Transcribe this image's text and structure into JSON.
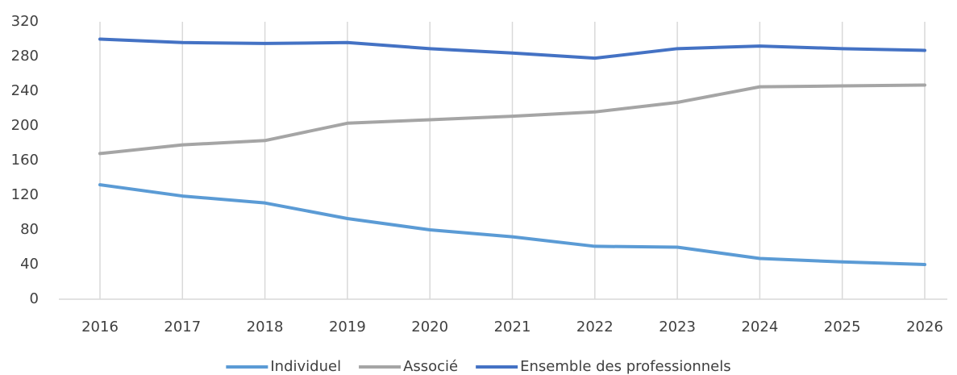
{
  "chart_data": {
    "type": "line",
    "categories": [
      "2016",
      "2017",
      "2018",
      "2019",
      "2020",
      "2021",
      "2022",
      "2023",
      "2024",
      "2025",
      "2026"
    ],
    "series": [
      {
        "name": "Individuel",
        "color": "#5b9bd5",
        "values": [
          132,
          119,
          111,
          93,
          80,
          72,
          61,
          60,
          47,
          43,
          40
        ]
      },
      {
        "name": "Associé",
        "color": "#a5a5a5",
        "values": [
          168,
          178,
          183,
          203,
          207,
          211,
          216,
          227,
          245,
          246,
          247
        ]
      },
      {
        "name": "Ensemble des professionnels",
        "color": "#4472c4",
        "values": [
          300,
          296,
          295,
          296,
          289,
          284,
          278,
          289,
          292,
          289,
          287
        ]
      }
    ],
    "ylim": [
      0,
      320
    ],
    "yticks": [
      0,
      40,
      80,
      120,
      160,
      200,
      240,
      280,
      320
    ],
    "grid": true,
    "legend": "bottom"
  }
}
